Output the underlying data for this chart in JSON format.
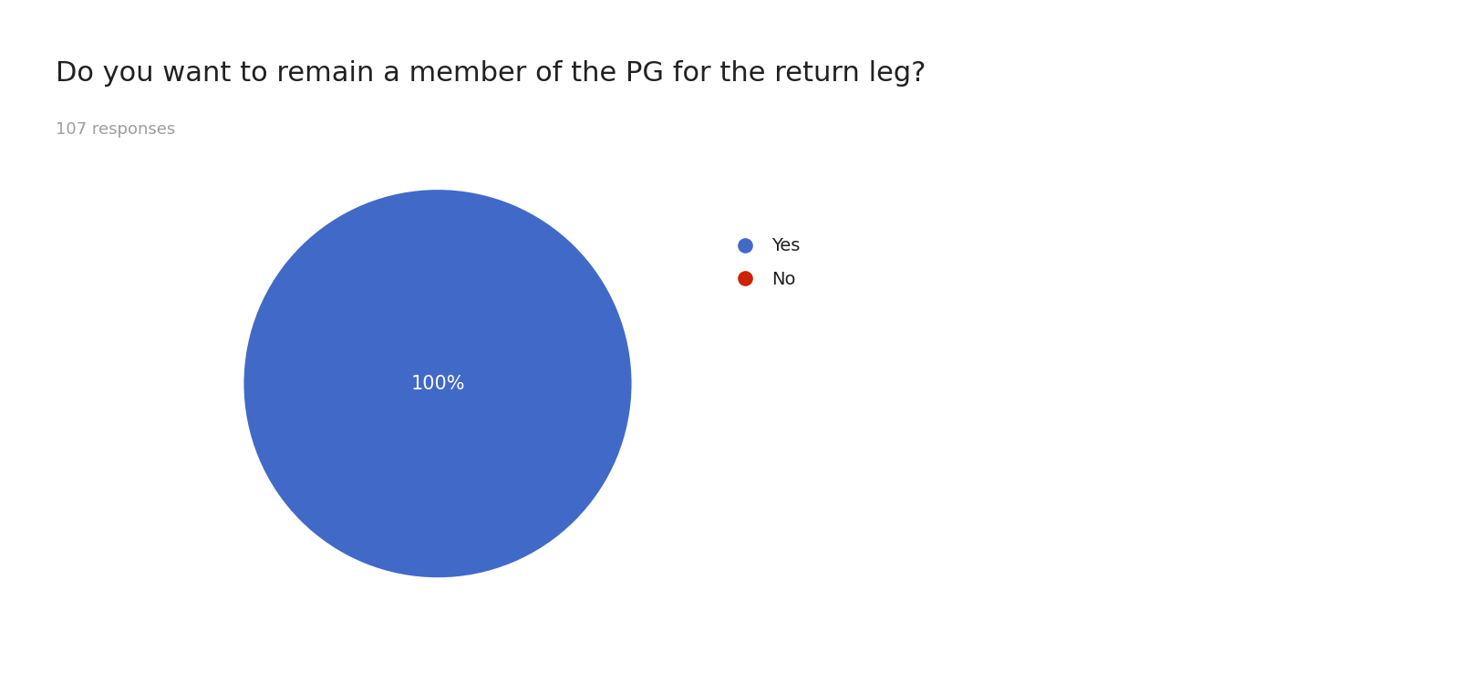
{
  "title": "Do you want to remain a member of the PG for the return leg?",
  "subtitle": "107 responses",
  "labels": [
    "Yes",
    "No"
  ],
  "colors": [
    "#4169c8",
    "#cc2200"
  ],
  "pct_label": "100%",
  "background_color": "#ffffff",
  "title_fontsize": 22,
  "subtitle_fontsize": 13,
  "legend_fontsize": 14,
  "pct_fontsize": 15
}
